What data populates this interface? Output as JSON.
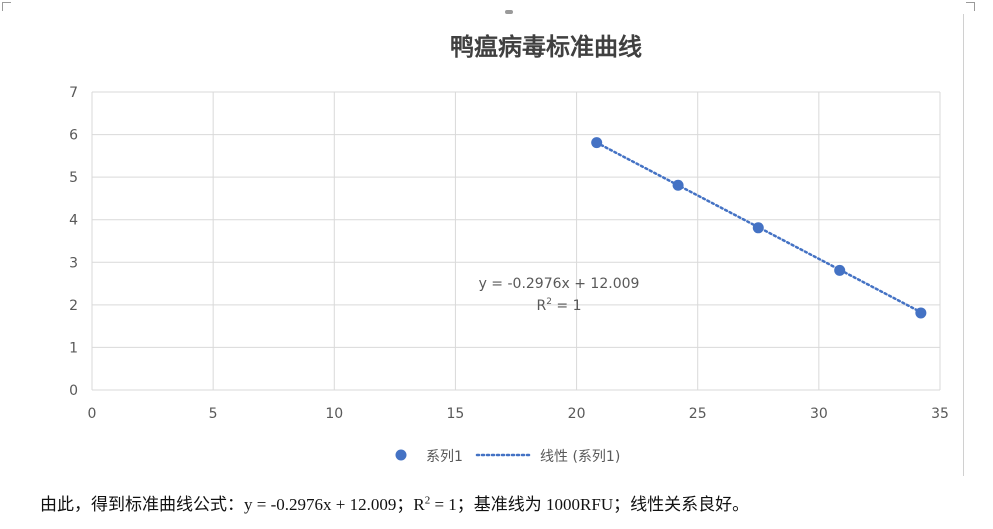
{
  "chart_data": {
    "type": "scatter",
    "title": "鸭瘟病毒标准曲线",
    "xlabel": "",
    "ylabel": "",
    "xlim": [
      0,
      35
    ],
    "ylim": [
      0,
      7
    ],
    "xticks": [
      "0",
      "5",
      "10",
      "15",
      "20",
      "25",
      "30",
      "35"
    ],
    "yticks": [
      "0",
      "1",
      "2",
      "3",
      "4",
      "5",
      "6",
      "7"
    ],
    "grid": true,
    "legend_position": "bottom",
    "series": [
      {
        "name": "系列1",
        "x": [
          20.83,
          24.19,
          27.5,
          30.86,
          34.21
        ],
        "y": [
          5.81,
          4.81,
          3.81,
          2.81,
          1.81
        ],
        "color": "#4472c4"
      }
    ],
    "trendline": {
      "name": "线性 (系列1)",
      "type": "linear",
      "slope": -0.2976,
      "intercept": 12.009,
      "x_range": [
        20.83,
        34.21
      ],
      "color": "#4472c4",
      "equation": "y = -0.2976x + 12.009",
      "r2_prefix": "R",
      "r2_sup": "2",
      "r2_suffix": " = 1"
    }
  },
  "caption": {
    "part1": "由此，得到标准曲线公式：y = -0.2976x + 12.009；R",
    "sup": "2",
    "part2": " = 1；基准线为 1000RFU；线性关系良好。"
  },
  "colors": {
    "gridline": "#d9d9d9",
    "axis_text": "#595959",
    "title_text": "#404040"
  }
}
